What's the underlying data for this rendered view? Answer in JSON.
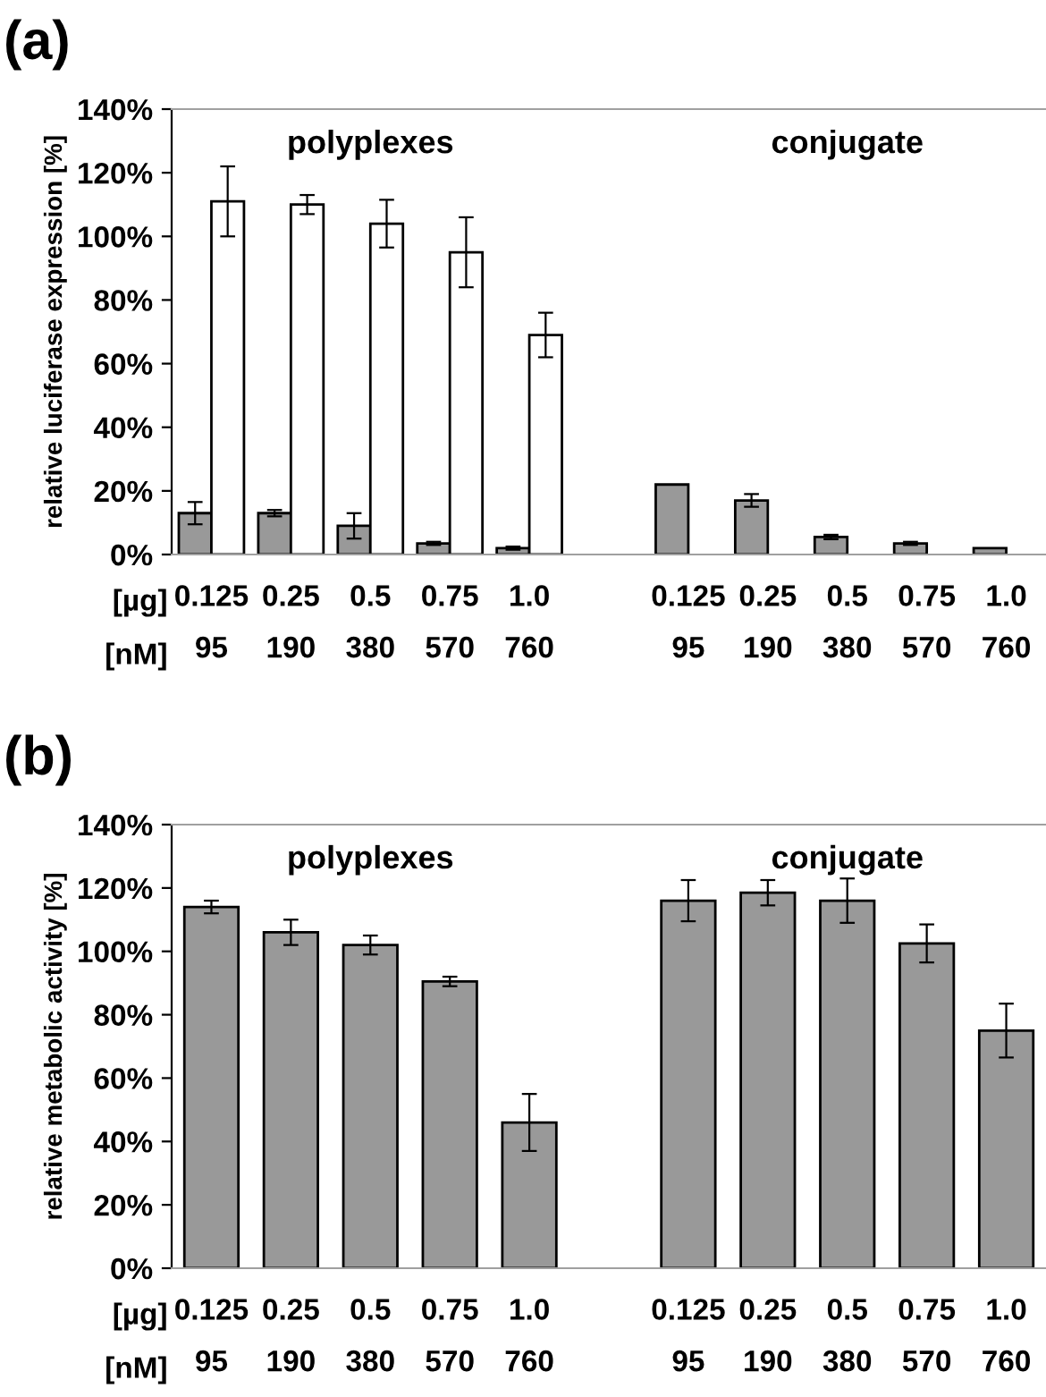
{
  "chart_data": [
    {
      "type": "bar",
      "title": "(a)",
      "ylabel": "relative luciferase expression [%]",
      "categories": [
        "0.125\n95",
        "0.25\n190",
        "0.5\n380",
        "0.75\n570",
        "1.0\n760",
        null,
        "0.125\n95",
        "0.25\n190",
        "0.5\n380",
        "0.75\n570",
        "1.0\n760"
      ],
      "series": [
        {
          "color": "#999999",
          "values": [
            13,
            13,
            9,
            3.5,
            2,
            null,
            22,
            17,
            5.5,
            3.5,
            2
          ],
          "errors": [
            3.5,
            1,
            4,
            0.5,
            0.5,
            null,
            null,
            2,
            0.7,
            0.5,
            null
          ]
        },
        {
          "color": "#ffffff",
          "values": [
            111,
            110,
            104,
            95,
            69,
            null,
            null,
            null,
            null,
            null,
            null
          ],
          "errors": [
            11,
            3,
            7.5,
            11,
            7,
            null,
            null,
            null,
            null,
            null,
            null
          ]
        }
      ],
      "ylim": [
        0,
        140
      ],
      "yticks": [
        {
          "value": 0,
          "label": "0%"
        },
        {
          "value": 20,
          "label": "20%"
        },
        {
          "value": 40,
          "label": "40%"
        },
        {
          "value": 60,
          "label": "60%"
        },
        {
          "value": 80,
          "label": "80%"
        },
        {
          "value": 100,
          "label": "100%"
        },
        {
          "value": 120,
          "label": "120%"
        },
        {
          "value": 140,
          "label": "140%"
        }
      ],
      "grid": false,
      "legend": false,
      "annotations": [
        "polyplexes",
        "conjugate",
        "[µg]",
        "[nM]"
      ]
    },
    {
      "type": "bar",
      "title": "(b)",
      "ylabel": "relative metabolic activity [%]",
      "categories": [
        "0.125\n95",
        "0.25\n190",
        "0.5\n380",
        "0.75\n570",
        "1.0\n760",
        null,
        "0.125\n95",
        "0.25\n190",
        "0.5\n380",
        "0.75\n570",
        "1.0\n760"
      ],
      "series": [
        {
          "color": "#999999",
          "values": [
            114,
            106,
            102,
            90.5,
            46,
            null,
            116,
            118.5,
            116,
            102.5,
            75
          ],
          "errors": [
            2,
            4,
            3,
            1.5,
            9,
            null,
            6.5,
            4,
            7,
            6,
            8.5
          ]
        }
      ],
      "ylim": [
        0,
        140
      ],
      "yticks": [
        {
          "value": 0,
          "label": "0%"
        },
        {
          "value": 20,
          "label": "20%"
        },
        {
          "value": 40,
          "label": "40%"
        },
        {
          "value": 60,
          "label": "60%"
        },
        {
          "value": 80,
          "label": "80%"
        },
        {
          "value": 100,
          "label": "100%"
        },
        {
          "value": 120,
          "label": "120%"
        },
        {
          "value": 140,
          "label": "140%"
        }
      ],
      "grid": false,
      "legend": false,
      "annotations": [
        "polyplexes",
        "conjugate",
        "[µg]",
        "[nM]"
      ]
    }
  ]
}
